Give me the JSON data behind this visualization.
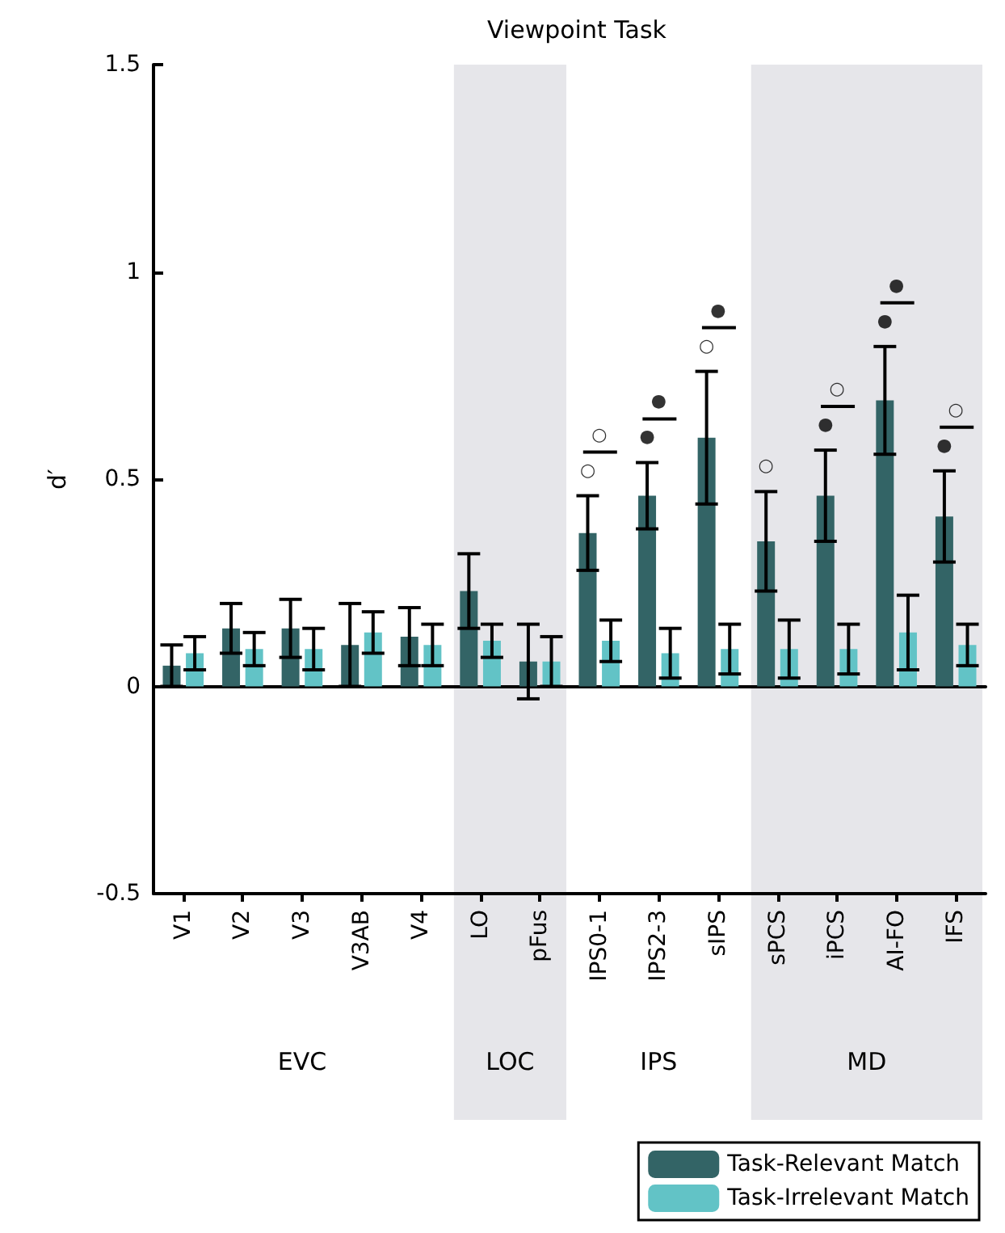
{
  "chart_data": {
    "type": "bar",
    "title": "Viewpoint Task",
    "ylabel": "d′",
    "categories": [
      "V1",
      "V2",
      "V3",
      "V3AB",
      "V4",
      "LO",
      "pFus",
      "IPS0-1",
      "IPS2-3",
      "sIPS",
      "sPCS",
      "iPCS",
      "AI-FO",
      "IFS"
    ],
    "series": [
      {
        "name": "Task-Relevant Match",
        "color": "#336466",
        "values": [
          0.05,
          0.14,
          0.14,
          0.1,
          0.12,
          0.23,
          0.06,
          0.37,
          0.46,
          0.6,
          0.35,
          0.46,
          0.69,
          0.41
        ],
        "errors": [
          0.05,
          0.06,
          0.07,
          0.1,
          0.07,
          0.09,
          0.09,
          0.09,
          0.08,
          0.16,
          0.12,
          0.11,
          0.13,
          0.11
        ]
      },
      {
        "name": "Task-Irrelevant Match",
        "color": "#62c3c6",
        "values": [
          0.08,
          0.09,
          0.09,
          0.13,
          0.1,
          0.11,
          0.06,
          0.11,
          0.08,
          0.09,
          0.09,
          0.09,
          0.13,
          0.1
        ],
        "errors": [
          0.04,
          0.04,
          0.05,
          0.05,
          0.05,
          0.04,
          0.06,
          0.05,
          0.06,
          0.06,
          0.07,
          0.06,
          0.09,
          0.05
        ]
      }
    ],
    "ylim": [
      -0.5,
      1.5
    ],
    "yticks": [
      -0.5,
      0,
      0.5,
      1,
      1.5
    ],
    "bands": [
      {
        "axis": "x",
        "from": "LO",
        "to": "pFus",
        "label": "LOC",
        "color": "#e6e6ea"
      },
      {
        "axis": "x",
        "from": "sPCS",
        "to": "IFS",
        "label": "MD",
        "color": "#e6e6ea"
      }
    ],
    "annotations": [
      "EVC",
      "IPS",
      {
        "text": "○",
        "x": "IPS0-1",
        "y": 0.46
      },
      {
        "text": "○",
        "x": "IPS0-1",
        "y": 0.46
      },
      {
        "text": "●",
        "x": "IPS2-3",
        "y": 0.54
      },
      {
        "text": "●",
        "x": "IPS2-3",
        "y": 0.54
      },
      {
        "text": "○",
        "x": "sIPS",
        "y": 0.76
      },
      {
        "text": "●",
        "x": "sIPS",
        "y": 0.76
      },
      {
        "text": "○",
        "x": "sPCS",
        "y": 0.47
      },
      {
        "text": "●",
        "x": "iPCS",
        "y": 0.57
      },
      {
        "text": "○",
        "x": "iPCS",
        "y": 0.57
      },
      {
        "text": "●",
        "x": "AI-FO",
        "y": 0.82
      },
      {
        "text": "●",
        "x": "AI-FO",
        "y": 0.82
      },
      {
        "text": "●",
        "x": "IFS",
        "y": 0.52
      },
      {
        "text": "○",
        "x": "IFS",
        "y": 0.52
      }
    ],
    "legend": "bottom right"
  }
}
